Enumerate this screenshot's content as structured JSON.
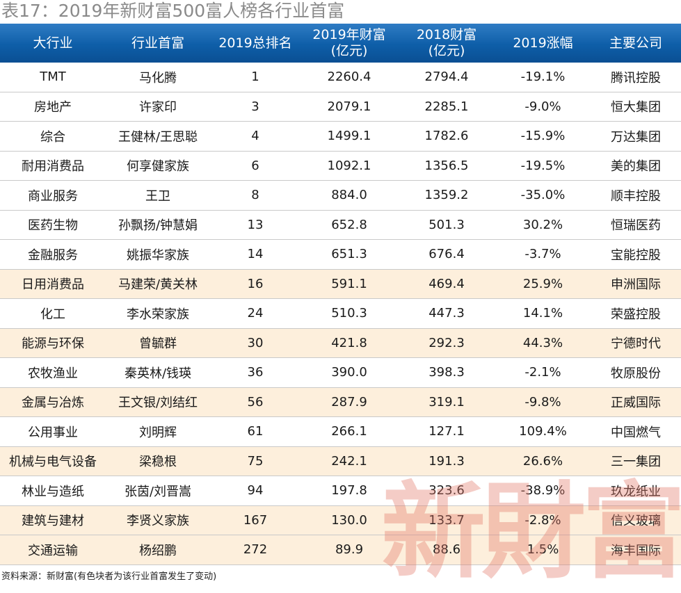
{
  "title": "表17：2019年新财富500富人榜各行业首富",
  "headers": [
    {
      "l1": "大行业",
      "l2": ""
    },
    {
      "l1": "行业首富",
      "l2": ""
    },
    {
      "l1": "2019总排名",
      "l2": ""
    },
    {
      "l1": "2019年财富",
      "l2": "(亿元)"
    },
    {
      "l1": "2018财富",
      "l2": "(亿元)"
    },
    {
      "l1": "2019涨幅",
      "l2": ""
    },
    {
      "l1": "主要公司",
      "l2": ""
    }
  ],
  "rows": [
    {
      "industry": "TMT",
      "richest": "马化腾",
      "rank": "1",
      "wealth2019": "2260.4",
      "wealth2018": "2794.4",
      "change": "-19.1%",
      "company": "腾讯控股",
      "highlight": false
    },
    {
      "industry": "房地产",
      "richest": "许家印",
      "rank": "3",
      "wealth2019": "2079.1",
      "wealth2018": "2285.1",
      "change": "-9.0%",
      "company": "恒大集团",
      "highlight": false
    },
    {
      "industry": "综合",
      "richest": "王健林/王思聪",
      "rank": "4",
      "wealth2019": "1499.1",
      "wealth2018": "1782.6",
      "change": "-15.9%",
      "company": "万达集团",
      "highlight": false
    },
    {
      "industry": "耐用消费品",
      "richest": "何享健家族",
      "rank": "6",
      "wealth2019": "1092.1",
      "wealth2018": "1356.5",
      "change": "-19.5%",
      "company": "美的集团",
      "highlight": false
    },
    {
      "industry": "商业服务",
      "richest": "王卫",
      "rank": "8",
      "wealth2019": "884.0",
      "wealth2018": "1359.2",
      "change": "-35.0%",
      "company": "顺丰控股",
      "highlight": false
    },
    {
      "industry": "医药生物",
      "richest": "孙飘扬/钟慧娟",
      "rank": "13",
      "wealth2019": "652.8",
      "wealth2018": "501.3",
      "change": "30.2%",
      "company": "恒瑞医药",
      "highlight": false
    },
    {
      "industry": "金融服务",
      "richest": "姚振华家族",
      "rank": "14",
      "wealth2019": "651.3",
      "wealth2018": "676.4",
      "change": "-3.7%",
      "company": "宝能控股",
      "highlight": false
    },
    {
      "industry": "日用消费品",
      "richest": "马建荣/黄关林",
      "rank": "16",
      "wealth2019": "591.1",
      "wealth2018": "469.4",
      "change": "25.9%",
      "company": "申洲国际",
      "highlight": true
    },
    {
      "industry": "化工",
      "richest": "李水荣家族",
      "rank": "24",
      "wealth2019": "510.3",
      "wealth2018": "447.3",
      "change": "14.1%",
      "company": "荣盛控股",
      "highlight": false
    },
    {
      "industry": "能源与环保",
      "richest": "曾毓群",
      "rank": "30",
      "wealth2019": "421.8",
      "wealth2018": "292.3",
      "change": "44.3%",
      "company": "宁德时代",
      "highlight": true
    },
    {
      "industry": "农牧渔业",
      "richest": "秦英林/钱瑛",
      "rank": "36",
      "wealth2019": "390.0",
      "wealth2018": "398.3",
      "change": "-2.1%",
      "company": "牧原股份",
      "highlight": false
    },
    {
      "industry": "金属与冶炼",
      "richest": "王文银/刘结红",
      "rank": "56",
      "wealth2019": "287.9",
      "wealth2018": "319.1",
      "change": "-9.8%",
      "company": "正威国际",
      "highlight": true
    },
    {
      "industry": "公用事业",
      "richest": "刘明辉",
      "rank": "61",
      "wealth2019": "266.1",
      "wealth2018": "127.1",
      "change": "109.4%",
      "company": "中国燃气",
      "highlight": false
    },
    {
      "industry": "机械与电气设备",
      "richest": "梁稳根",
      "rank": "75",
      "wealth2019": "242.1",
      "wealth2018": "191.3",
      "change": "26.6%",
      "company": "三一集团",
      "highlight": true
    },
    {
      "industry": "林业与造纸",
      "richest": "张茵/刘晋嵩",
      "rank": "94",
      "wealth2019": "197.8",
      "wealth2018": "323.6",
      "change": "-38.9%",
      "company": "玖龙纸业",
      "highlight": false
    },
    {
      "industry": "建筑与建材",
      "richest": "李贤义家族",
      "rank": "167",
      "wealth2019": "130.0",
      "wealth2018": "133.7",
      "change": "-2.8%",
      "company": "信义玻璃",
      "highlight": true
    },
    {
      "industry": "交通运输",
      "richest": "杨绍鹏",
      "rank": "272",
      "wealth2019": "89.9",
      "wealth2018": "88.6",
      "change": "1.5%",
      "company": "海丰国际",
      "highlight": true
    }
  ],
  "footer": "资料来源：新财富(有色块者为该行业首富发生了变动)",
  "watermark": "新財富",
  "colors": {
    "header": "#0e5ea8",
    "highlight": "#fdefdc",
    "watermark": "#e27869"
  }
}
